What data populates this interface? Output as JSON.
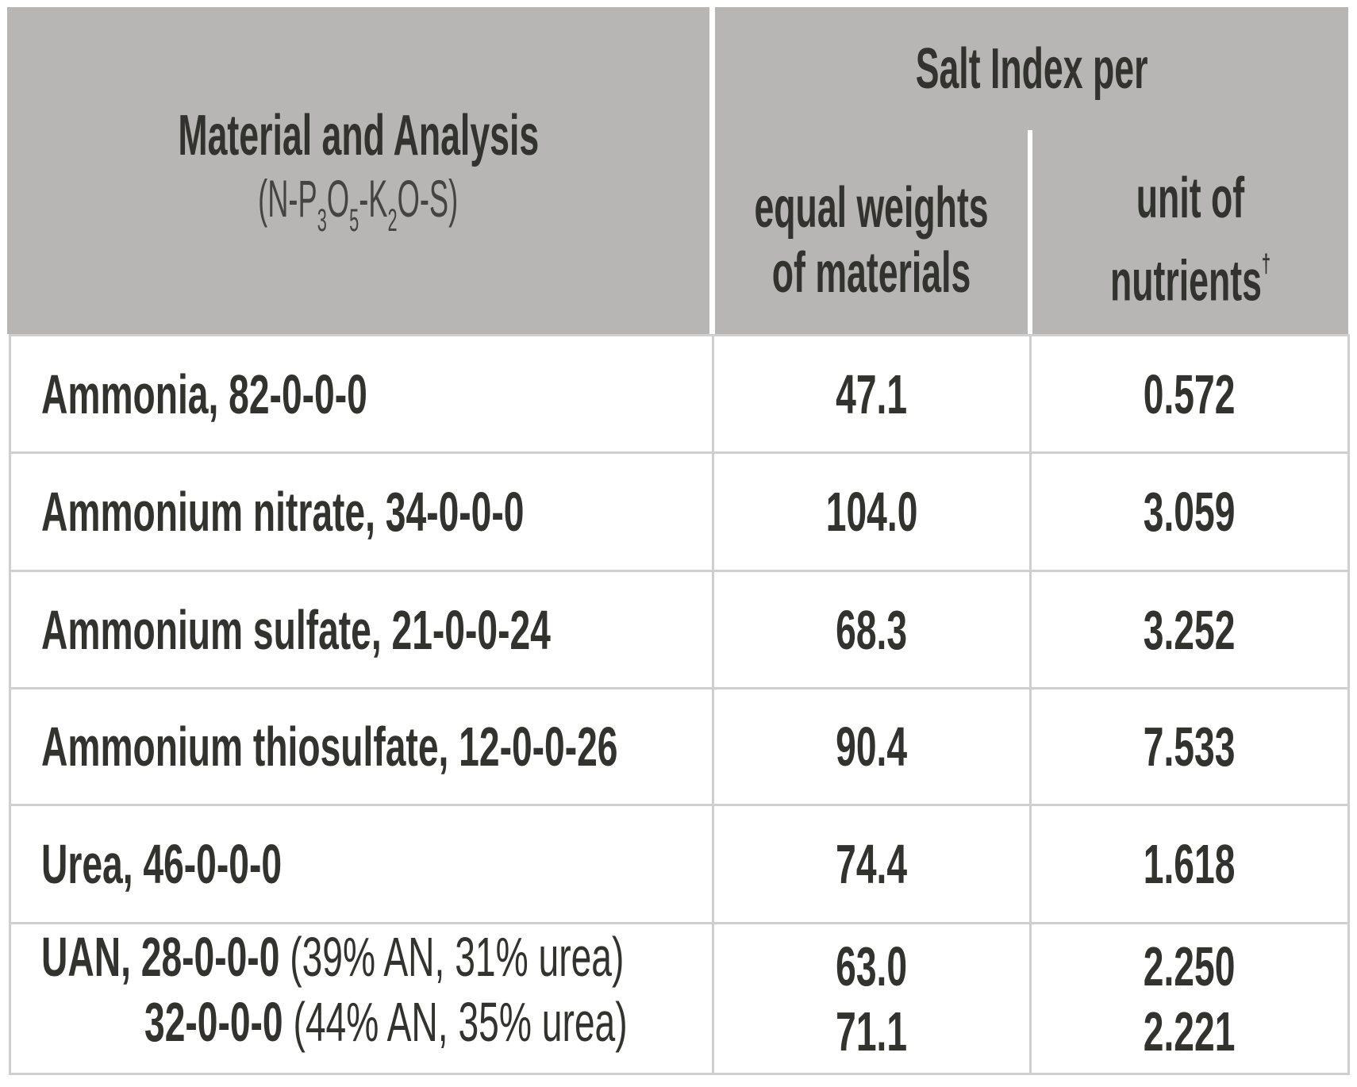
{
  "header": {
    "material_title": "Material and Analysis",
    "analysis_format": {
      "n": "(N-P",
      "p_sub": "3",
      "o1": "O",
      "o_sub": "5",
      "k": "-K",
      "k_sub": "2",
      "rest": "O-S)"
    },
    "salt_index_title": "Salt Index per",
    "col_equal_weights": [
      "equal weights",
      "of materials"
    ],
    "col_unit_nutrients": [
      "unit of",
      "nutrients"
    ],
    "dagger": "†"
  },
  "rows": [
    {
      "material": "Ammonia, 82-0-0-0",
      "equal_weights": "47.1",
      "unit_nutrients": "0.572"
    },
    {
      "material": "Ammonium nitrate, 34-0-0-0",
      "equal_weights": "104.0",
      "unit_nutrients": "3.059"
    },
    {
      "material": "Ammonium sulfate, 21-0-0-24",
      "equal_weights": "68.3",
      "unit_nutrients": "3.252"
    },
    {
      "material": "Ammonium thiosulfate, 12-0-0-26",
      "equal_weights": "90.4",
      "unit_nutrients": "7.533"
    },
    {
      "material": "Urea, 46-0-0-0",
      "equal_weights": "74.4",
      "unit_nutrients": "1.618"
    }
  ],
  "uan": {
    "line1_bold": "UAN, 28-0-0-0",
    "line1_note": " (39% AN, 31% urea)",
    "line2_bold": "32-0-0-0",
    "line2_note": " (44% AN, 35% urea)",
    "equal_weights": [
      "63.0",
      "71.1"
    ],
    "unit_nutrients": [
      "2.250",
      "2.221"
    ]
  }
}
